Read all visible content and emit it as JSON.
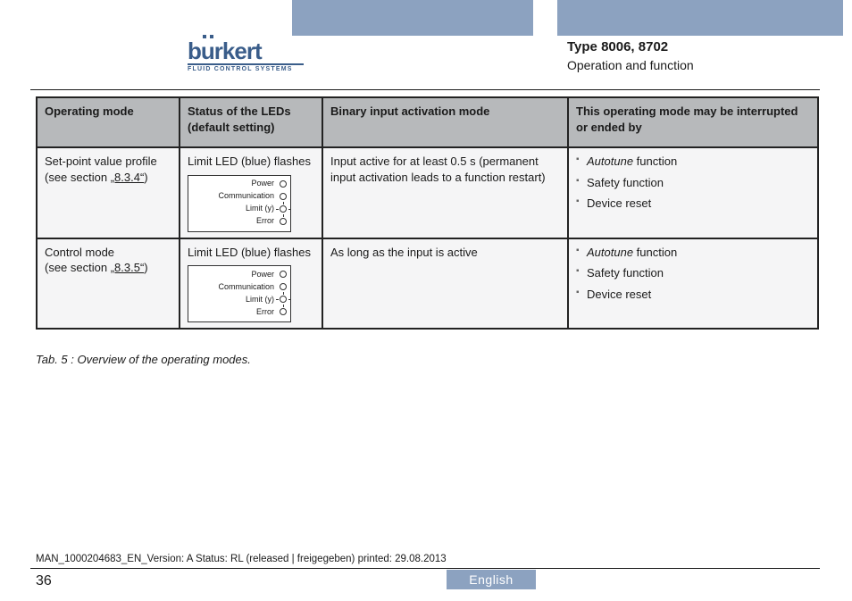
{
  "colors": {
    "accent_bar": "#8ca2c0",
    "logo_blue": "#3a5d8a",
    "header_bg": "#b7b9bb",
    "cell_bg": "#f5f5f6",
    "border": "#222222",
    "text": "#1a1a1a"
  },
  "logo": {
    "word": "burkert",
    "tagline": "FLUID CONTROL SYSTEMS"
  },
  "header": {
    "type_line": "Type 8006, 8702",
    "section_line": "Operation and function"
  },
  "table": {
    "columns": [
      "Operating mode",
      "Status of the LEDs (default setting)",
      "Binary input activation mode",
      "This operating mode may be interrupted or ended by"
    ],
    "led_labels": [
      "Power",
      "Communication",
      "Limit (y)",
      "Error"
    ],
    "rows": [
      {
        "mode_text": "Set-point value profile (see section ",
        "mode_ref": "„8.3.4“",
        "mode_close": ")",
        "status": "Limit LED (blue) flashes",
        "binary": "Input active for at least 0.5 s (permanent input activation leads to a function restart)",
        "interrupt": [
          {
            "italic": "Autotune",
            "rest": " function"
          },
          {
            "italic": "",
            "rest": "Safety function"
          },
          {
            "italic": "",
            "rest": "Device reset"
          }
        ]
      },
      {
        "mode_text": "Control mode",
        "mode_text2": "(see section ",
        "mode_ref": "„8.3.5“",
        "mode_close": ")",
        "status": "Limit LED (blue) flashes",
        "binary": "As long as the input is active",
        "interrupt": [
          {
            "italic": "Autotune",
            "rest": " function"
          },
          {
            "italic": "",
            "rest": "Safety function"
          },
          {
            "italic": "",
            "rest": "Device reset"
          }
        ]
      }
    ]
  },
  "caption": "Tab. 5 :   Overview of the operating modes.",
  "footer": {
    "doc_line": "MAN_1000204683_EN_Version: A Status: RL (released | freigegeben)  printed: 29.08.2013",
    "page_num": "36",
    "language": "English"
  }
}
